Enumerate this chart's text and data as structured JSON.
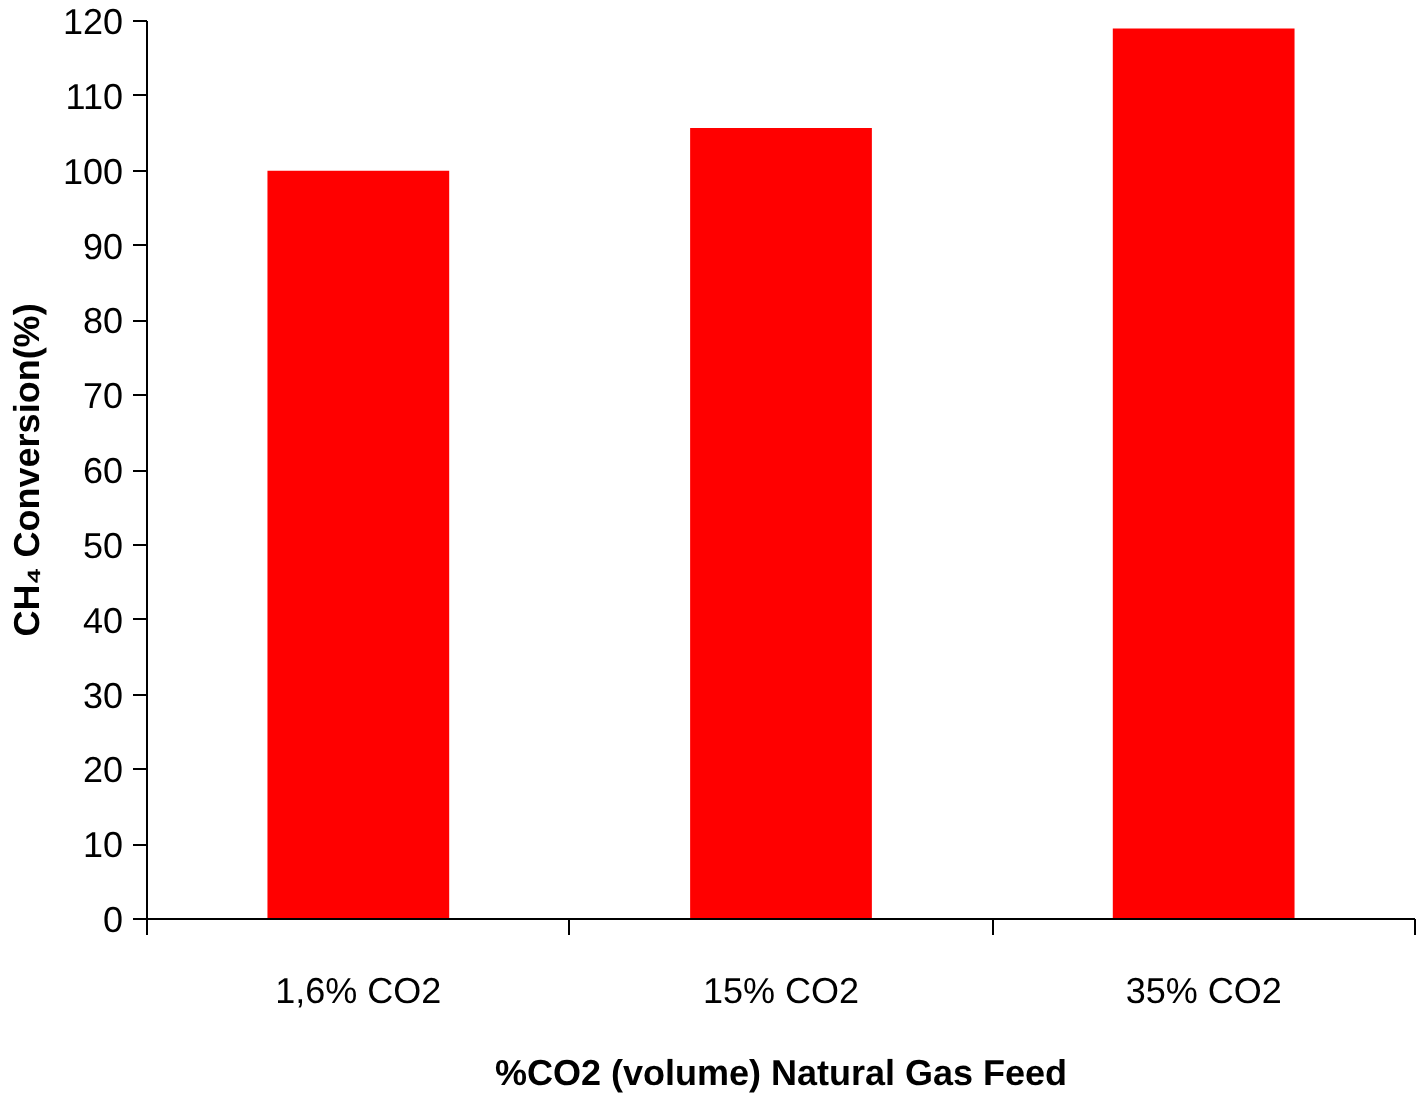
{
  "chart_data": {
    "type": "bar",
    "xlabel": "%CO2 (volume) Natural Gas Feed",
    "ylabel": "CH₄ Conversion(%)",
    "categories": [
      "1,6% CO2",
      "15% CO2",
      "35% CO2"
    ],
    "values": [
      100,
      105.7,
      119
    ],
    "color": "#ff0000",
    "ylim": [
      0,
      120
    ],
    "yticks": [
      0,
      10,
      20,
      30,
      40,
      50,
      60,
      70,
      80,
      90,
      100,
      110,
      120
    ],
    "grid": false
  }
}
